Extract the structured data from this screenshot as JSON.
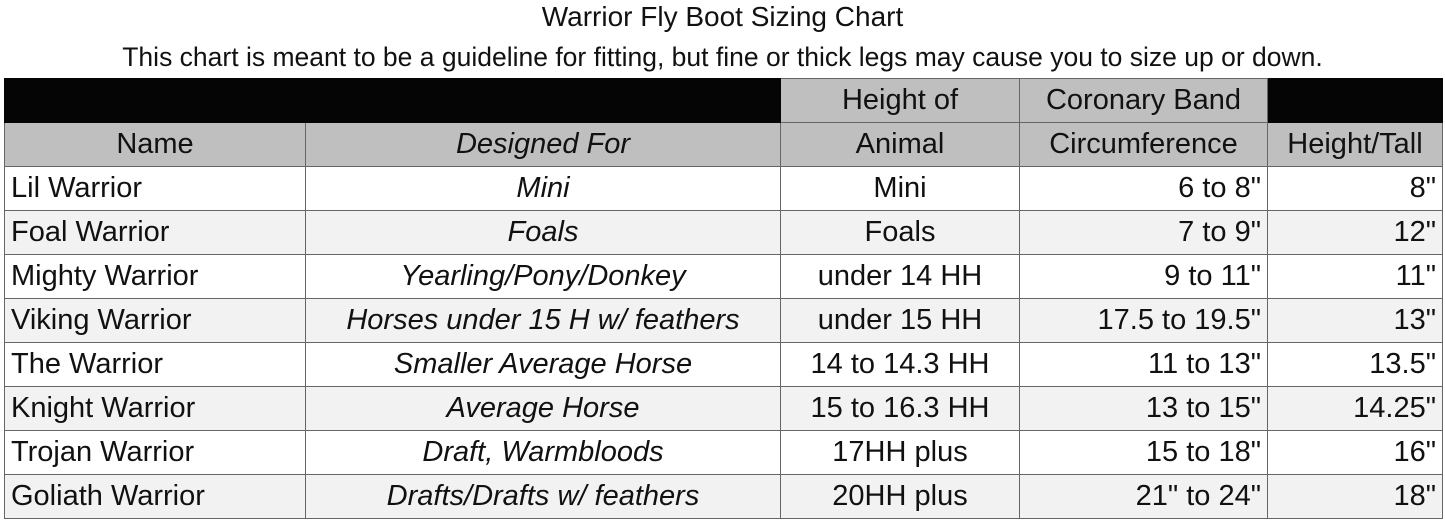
{
  "title": "Warrior Fly Boot Sizing Chart",
  "subtitle": "This chart is meant to be a guideline for fitting, but fine or thick legs may cause you to size up or down.",
  "columns": {
    "name": "Name",
    "designed_for": "Designed For",
    "height_of_animal_1": "Height of",
    "height_of_animal_2": "Animal",
    "coronary_1": "Coronary Band",
    "coronary_2": "Circumference",
    "height_tall": "Height/Tall"
  },
  "rows": [
    {
      "name": "Lil Warrior",
      "designed_for": "Mini",
      "height": "Mini",
      "coronary": "6 to 8\"",
      "tall": "8\""
    },
    {
      "name": "Foal Warrior",
      "designed_for": "Foals",
      "height": "Foals",
      "coronary": "7 to 9\"",
      "tall": "12\""
    },
    {
      "name": "Mighty Warrior",
      "designed_for": "Yearling/Pony/Donkey",
      "height": "under 14 HH",
      "coronary": "9 to 11\"",
      "tall": "11\""
    },
    {
      "name": "Viking Warrior",
      "designed_for": "Horses under 15 H w/ feathers",
      "height": "under 15 HH",
      "coronary": "17.5 to  19.5\"",
      "tall": "13\""
    },
    {
      "name": "The Warrior",
      "designed_for": "Smaller Average Horse",
      "height": "14 to 14.3 HH",
      "coronary": "11 to 13\"",
      "tall": "13.5\""
    },
    {
      "name": "Knight Warrior",
      "designed_for": "Average Horse",
      "height": "15 to 16.3 HH",
      "coronary": "13 to 15\"",
      "tall": "14.25\""
    },
    {
      "name": "Trojan Warrior",
      "designed_for": "Draft, Warmbloods",
      "height": "17HH plus",
      "coronary": "15 to 18\"",
      "tall": "16\""
    },
    {
      "name": "Goliath Warrior",
      "designed_for": "Drafts/Drafts w/ feathers",
      "height": "20HH plus",
      "coronary": "21\" to 24\"",
      "tall": "18\""
    }
  ],
  "colors": {
    "header_gray": "#bfbfbf",
    "header_black": "#050505",
    "alt_row": "#f2f2f2"
  }
}
